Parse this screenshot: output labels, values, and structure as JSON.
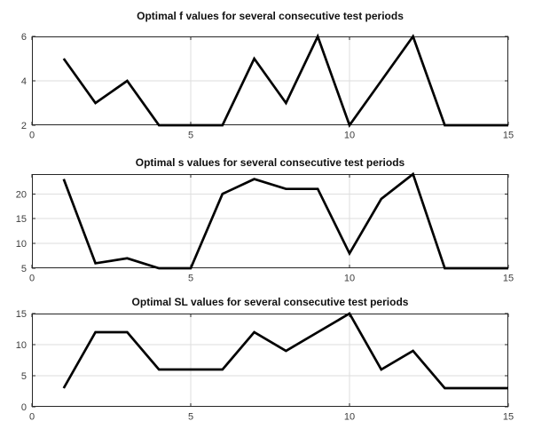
{
  "figure": {
    "background": "#ffffff",
    "axis_color": "#262626",
    "grid_color": "#dedede",
    "tick_label_color": "#3d3d3d",
    "title_color": "#111111",
    "line_color": "#000000"
  },
  "chart_data": [
    {
      "type": "line",
      "title": "Optimal f values for several consecutive test periods",
      "x": [
        1,
        2,
        3,
        4,
        5,
        6,
        7,
        8,
        9,
        10,
        11,
        12,
        13,
        14,
        15
      ],
      "values": [
        5,
        3,
        4,
        2,
        2,
        2,
        5,
        3,
        6,
        2,
        4,
        6,
        2,
        2,
        2
      ],
      "xlim": [
        0,
        15
      ],
      "ylim": [
        2,
        6
      ],
      "xticks": [
        0,
        5,
        10,
        15
      ],
      "yticks": [
        2,
        4,
        6
      ],
      "grid": true
    },
    {
      "type": "line",
      "title": "Optimal s values for several consecutive test periods",
      "x": [
        1,
        2,
        3,
        4,
        5,
        6,
        7,
        8,
        9,
        10,
        11,
        12,
        13,
        14,
        15
      ],
      "values": [
        23,
        6,
        7,
        5,
        5,
        20,
        23,
        21,
        21,
        8,
        19,
        24,
        5,
        5,
        5
      ],
      "xlim": [
        0,
        15
      ],
      "ylim": [
        5,
        24
      ],
      "xticks": [
        0,
        5,
        10,
        15
      ],
      "yticks": [
        5,
        10,
        15,
        20
      ],
      "grid": true
    },
    {
      "type": "line",
      "title": "Optimal SL values for several consecutive test periods",
      "x": [
        1,
        2,
        3,
        4,
        5,
        6,
        7,
        8,
        9,
        10,
        11,
        12,
        13,
        14,
        15
      ],
      "values": [
        3,
        12,
        12,
        6,
        6,
        6,
        12,
        9,
        12,
        15,
        6,
        9,
        3,
        3,
        3
      ],
      "xlim": [
        0,
        15
      ],
      "ylim": [
        0,
        15
      ],
      "xticks": [
        0,
        5,
        10,
        15
      ],
      "yticks": [
        0,
        5,
        10,
        15
      ],
      "grid": true
    }
  ]
}
